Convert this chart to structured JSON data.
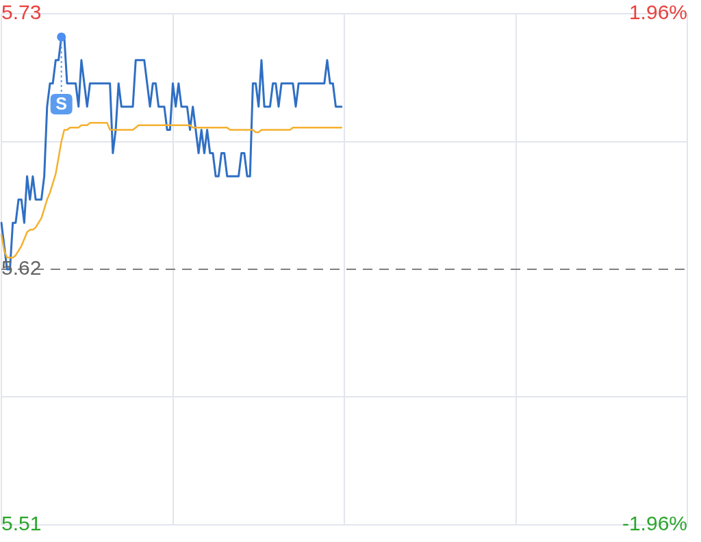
{
  "chart_data": {
    "type": "line",
    "categories": [
      null,
      null,
      null,
      null,
      null,
      null,
      null,
      null,
      null,
      null,
      null,
      null,
      null,
      null,
      null,
      null,
      null,
      null,
      null,
      null,
      null,
      null,
      null,
      null,
      null,
      null,
      null,
      null,
      null,
      null,
      null,
      null,
      null,
      null,
      null,
      null,
      null,
      null,
      null,
      null,
      null,
      null,
      null,
      null,
      null,
      null,
      null,
      null,
      null,
      null,
      null,
      null,
      null,
      null,
      null,
      null,
      null,
      null,
      null,
      null,
      null,
      null,
      null,
      null,
      null,
      null,
      null,
      null,
      null,
      null,
      null,
      null,
      null,
      null,
      null,
      null,
      null,
      null,
      null,
      null,
      null,
      null,
      null,
      null,
      null,
      null,
      null,
      null,
      null,
      null,
      null,
      null,
      null,
      null,
      null,
      null,
      null,
      null,
      null,
      null,
      null,
      null,
      null,
      null,
      null,
      null,
      null,
      null,
      null,
      null,
      null,
      null,
      null,
      null,
      null,
      null,
      null,
      null,
      null,
      null,
      null,
      null,
      null,
      null,
      null,
      null,
      null,
      null,
      null,
      null,
      null,
      null,
      null,
      null,
      null,
      null,
      null,
      null,
      null,
      null,
      null,
      null,
      null,
      null,
      null,
      null,
      null,
      null,
      null,
      null,
      null,
      null,
      null,
      null,
      null,
      null,
      null,
      null,
      null,
      null,
      null,
      null,
      null,
      null,
      null,
      null,
      null,
      null,
      null,
      null,
      null,
      null,
      null,
      null,
      null,
      null,
      null,
      null,
      null,
      null,
      null,
      null,
      null,
      null,
      null,
      null,
      null,
      null,
      null,
      null,
      null,
      null,
      null,
      null,
      null,
      null,
      null,
      null,
      null,
      null,
      null,
      null,
      null,
      null,
      null,
      null,
      null,
      null,
      null,
      null,
      null,
      null,
      null,
      null,
      null,
      null,
      null,
      null,
      null,
      null,
      null,
      null,
      null,
      null,
      null,
      null,
      null,
      null,
      null,
      null,
      null,
      null,
      null,
      null,
      null,
      null,
      null,
      null,
      null,
      null,
      null
    ],
    "series": [
      {
        "color": "#2f6fc4",
        "values": [
          5.64,
          5.63,
          5.62,
          5.62,
          5.64,
          5.64,
          5.65,
          5.65,
          5.64,
          5.66,
          5.65,
          5.66,
          5.65,
          5.65,
          5.65,
          5.66,
          5.69,
          5.7,
          5.7,
          5.71,
          5.71,
          5.72,
          5.72,
          5.7,
          5.7,
          5.7,
          5.7,
          5.69,
          5.71,
          5.7,
          5.69,
          5.7,
          5.7,
          5.7,
          5.7,
          5.7,
          5.7,
          5.7,
          5.7,
          5.67,
          5.68,
          5.7,
          5.69,
          5.69,
          5.69,
          5.69,
          5.69,
          5.71,
          5.71,
          5.71,
          5.71,
          5.7,
          5.69,
          5.7,
          5.7,
          5.69,
          5.69,
          5.69,
          5.68,
          5.68,
          5.7,
          5.69,
          5.7,
          5.69,
          5.69,
          5.69,
          5.68,
          5.69,
          5.68,
          5.67,
          5.68,
          5.67,
          5.68,
          5.67,
          5.67,
          5.66,
          5.66,
          5.67,
          5.67,
          5.66,
          5.66,
          5.66,
          5.66,
          5.66,
          5.67,
          5.67,
          5.66,
          5.66,
          5.7,
          5.7,
          5.69,
          5.71,
          5.69,
          5.69,
          5.69,
          5.7,
          5.7,
          5.69,
          5.7,
          5.7,
          5.7,
          5.7,
          5.7,
          5.69,
          5.7,
          5.7,
          5.7,
          5.7,
          5.7,
          5.7,
          5.7,
          5.7,
          5.7,
          5.7,
          5.71,
          5.7,
          5.7,
          5.69,
          5.69,
          5.69,
          null,
          null,
          null,
          null,
          null,
          null,
          null,
          null,
          null,
          null,
          null,
          null,
          null,
          null,
          null,
          null,
          null,
          null,
          null,
          null,
          null,
          null,
          null,
          null,
          null,
          null,
          null,
          null,
          null,
          null,
          null,
          null,
          null,
          null,
          null,
          null,
          null,
          null,
          null,
          null,
          null,
          null,
          null,
          null,
          null,
          null,
          null,
          null,
          null,
          null,
          null,
          null,
          null,
          null,
          null,
          null,
          null,
          null,
          null,
          null,
          null,
          null,
          null,
          null,
          null,
          null,
          null,
          null,
          null,
          null,
          null,
          null,
          null,
          null,
          null,
          null,
          null,
          null,
          null,
          null,
          null,
          null,
          null,
          null,
          null,
          null,
          null,
          null,
          null,
          null,
          null,
          null,
          null,
          null,
          null,
          null,
          null,
          null,
          null,
          null,
          null,
          null,
          null,
          null,
          null,
          null,
          null,
          null,
          null,
          null,
          null,
          null,
          null,
          null,
          null,
          null,
          null,
          null,
          null,
          null,
          null
        ]
      },
      {
        "color": "#f5b02e",
        "values": [
          5.635,
          5.628,
          5.625,
          5.625,
          5.625,
          5.626,
          5.628,
          5.63,
          5.633,
          5.636,
          5.637,
          5.637,
          5.638,
          5.64,
          5.642,
          5.646,
          5.65,
          5.653,
          5.657,
          5.661,
          5.668,
          5.675,
          5.68,
          5.68,
          5.681,
          5.681,
          5.681,
          5.681,
          5.682,
          5.682,
          5.682,
          5.683,
          5.683,
          5.683,
          5.683,
          5.683,
          5.683,
          5.683,
          5.68,
          5.68,
          5.68,
          5.68,
          5.68,
          5.68,
          5.68,
          5.68,
          5.68,
          5.681,
          5.682,
          5.682,
          5.682,
          5.682,
          5.682,
          5.682,
          5.682,
          5.682,
          5.682,
          5.682,
          5.682,
          5.682,
          5.682,
          5.682,
          5.682,
          5.682,
          5.682,
          5.682,
          5.682,
          5.681,
          5.681,
          5.681,
          5.681,
          5.681,
          5.681,
          5.681,
          5.681,
          5.681,
          5.681,
          5.681,
          5.681,
          5.681,
          5.68,
          5.68,
          5.68,
          5.68,
          5.68,
          5.68,
          5.68,
          5.68,
          5.68,
          5.679,
          5.679,
          5.68,
          5.68,
          5.68,
          5.68,
          5.68,
          5.68,
          5.68,
          5.68,
          5.68,
          5.68,
          5.68,
          5.681,
          5.681,
          5.681,
          5.681,
          5.681,
          5.681,
          5.681,
          5.681,
          5.681,
          5.681,
          5.681,
          5.681,
          5.681,
          5.681,
          5.681,
          5.681,
          5.681,
          5.681,
          null,
          null,
          null,
          null,
          null,
          null,
          null,
          null,
          null,
          null,
          null,
          null,
          null,
          null,
          null,
          null,
          null,
          null,
          null,
          null,
          null,
          null,
          null,
          null,
          null,
          null,
          null,
          null,
          null,
          null,
          null,
          null,
          null,
          null,
          null,
          null,
          null,
          null,
          null,
          null,
          null,
          null,
          null,
          null,
          null,
          null,
          null,
          null,
          null,
          null,
          null,
          null,
          null,
          null,
          null,
          null,
          null,
          null,
          null,
          null,
          null,
          null,
          null,
          null,
          null,
          null,
          null,
          null,
          null,
          null,
          null,
          null,
          null,
          null,
          null,
          null,
          null,
          null,
          null,
          null,
          null,
          null,
          null,
          null,
          null,
          null,
          null,
          null,
          null,
          null,
          null,
          null,
          null,
          null,
          null,
          null,
          null,
          null,
          null,
          null,
          null,
          null,
          null,
          null,
          null,
          null,
          null,
          null,
          null,
          null,
          null,
          null,
          null,
          null,
          null,
          null,
          null,
          null,
          null,
          null,
          null
        ]
      }
    ],
    "ylim": [
      5.51,
      5.73
    ],
    "yticks": [
      5.73,
      {
        "value": 5.675,
        "label": null
      },
      5.62,
      {
        "value": 5.565,
        "label": null
      },
      5.51
    ],
    "y2lim": [
      -1.96,
      1.96
    ],
    "y2ticks": [
      {
        "value": 1.96,
        "label": "1.96%"
      },
      {
        "value": -1.96,
        "label": "-1.96%"
      }
    ],
    "ref_lines": [
      {
        "axis": "y",
        "value": 5.62,
        "color": "#808080",
        "line_style": "dashed"
      }
    ],
    "annotations": [
      {
        "text": "S",
        "y": 5.72
      }
    ],
    "grid": true,
    "marker": "none",
    "legend": false
  }
}
